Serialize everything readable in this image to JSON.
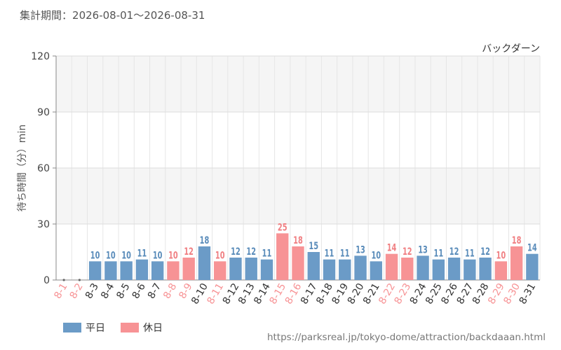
{
  "header": {
    "period_label": "集計期間",
    "separator": "：",
    "start_date": "2026-08-01",
    "range_sep": "～",
    "end_date": "2026-08-31"
  },
  "footer": {
    "url": "https://parksreal.jp/tokyo-dome/attraction/backdaaan.html"
  },
  "colors": {
    "weekday": "#6b9bc7",
    "holiday": "#f79395",
    "weekday_label": "#5a8cba",
    "holiday_label": "#f07f82"
  },
  "chart_data": {
    "type": "bar",
    "title": "バックダーン",
    "ylabel": "待ち時間（分）min",
    "ylim": [
      0,
      120
    ],
    "yticks": [
      0,
      30,
      60,
      90,
      120
    ],
    "grid": true,
    "legend_position": "bottom-left",
    "legend": [
      {
        "key": "weekday",
        "label": "平日"
      },
      {
        "key": "holiday",
        "label": "休日"
      }
    ],
    "categories": [
      "8-1",
      "8-2",
      "8-3",
      "8-4",
      "8-5",
      "8-6",
      "8-7",
      "8-8",
      "8-9",
      "8-10",
      "8-11",
      "8-12",
      "8-13",
      "8-14",
      "8-15",
      "8-16",
      "8-17",
      "8-18",
      "8-19",
      "8-20",
      "8-21",
      "8-22",
      "8-23",
      "8-24",
      "8-25",
      "8-26",
      "8-27",
      "8-28",
      "8-29",
      "8-30",
      "8-31"
    ],
    "day_type": [
      "holiday",
      "holiday",
      "weekday",
      "weekday",
      "weekday",
      "weekday",
      "weekday",
      "holiday",
      "holiday",
      "weekday",
      "holiday",
      "weekday",
      "weekday",
      "weekday",
      "holiday",
      "holiday",
      "weekday",
      "weekday",
      "weekday",
      "weekday",
      "weekday",
      "holiday",
      "holiday",
      "weekday",
      "weekday",
      "weekday",
      "weekday",
      "weekday",
      "holiday",
      "holiday",
      "weekday"
    ],
    "values": [
      null,
      null,
      10,
      10,
      10,
      11,
      10,
      10,
      12,
      18,
      10,
      12,
      12,
      11,
      25,
      18,
      15,
      11,
      11,
      13,
      10,
      14,
      12,
      13,
      11,
      12,
      11,
      12,
      10,
      18,
      14
    ]
  }
}
